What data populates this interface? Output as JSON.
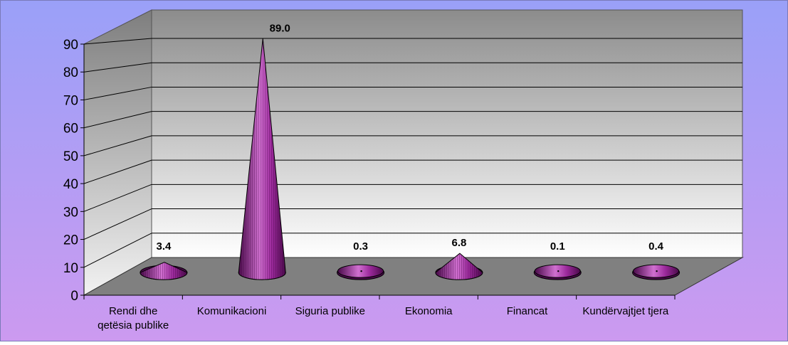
{
  "chart_data": {
    "type": "bar",
    "style": "3d-cone",
    "title": "",
    "xlabel": "",
    "ylabel": "",
    "ylim": [
      0,
      90
    ],
    "yticks": [
      0,
      10,
      20,
      30,
      40,
      50,
      60,
      70,
      80,
      90
    ],
    "categories": [
      "Rendi dhe qetësia publike",
      "Komunikacioni",
      "Siguria publike",
      "Ekonomia",
      "Financat",
      "Kundërvajtjet tjera"
    ],
    "category_lines": [
      [
        "Rendi dhe",
        "qetësia publike"
      ],
      [
        "Komunikacioni"
      ],
      [
        "Siguria publike"
      ],
      [
        "Ekonomia"
      ],
      [
        "Financat"
      ],
      [
        "Kundërvajtjet tjera"
      ]
    ],
    "values": [
      3.4,
      89.0,
      0.3,
      6.8,
      0.1,
      0.4
    ],
    "data_labels": [
      "3.4",
      "89.0",
      "0.3",
      "6.8",
      "0.1",
      "0.4"
    ],
    "grid": true,
    "legend": "none",
    "colors": {
      "background_top": "#9aa0f8",
      "background_bottom": "#cc9af0",
      "wall_top": "#8c8c8c",
      "wall_bottom": "#ffffff",
      "floor": "#808080",
      "cone_dark": "#4a0a4a",
      "cone_mid": "#9c2a9c",
      "cone_light": "#d070d0"
    }
  }
}
